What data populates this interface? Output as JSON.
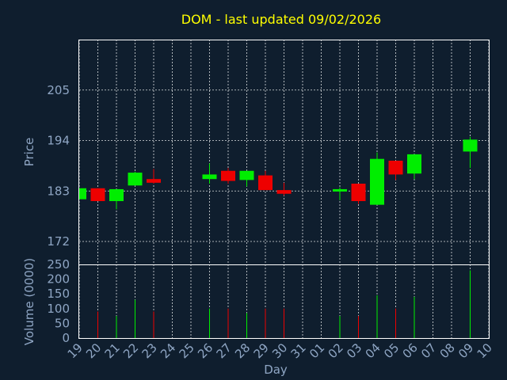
{
  "chart_data": {
    "type": "candlestick",
    "title": "DOM - last updated 09/02/2026",
    "price_panel": {
      "ylabel": "Price",
      "yticks": [
        172,
        183,
        194,
        205
      ],
      "ylim": [
        167,
        216
      ],
      "grid": true
    },
    "volume_panel": {
      "ylabel": "Volume (0000)",
      "yticks": [
        0,
        50,
        100,
        150,
        200,
        250
      ],
      "ylim": [
        0,
        250
      ],
      "grid": true
    },
    "xlabel": "Day",
    "xticks": [
      "19",
      "20",
      "21",
      "22",
      "23",
      "24",
      "25",
      "26",
      "27",
      "28",
      "29",
      "30",
      "31",
      "01",
      "02",
      "03",
      "04",
      "05",
      "06",
      "07",
      "08",
      "09",
      "10"
    ],
    "colors": {
      "up": "#00ee00",
      "down": "#ee0000",
      "background": "#0f1e2e",
      "frame": "#ffffff",
      "text": "#8fa6c4",
      "title": "#ffff00"
    },
    "candles": [
      {
        "day": "19",
        "open": 181.2,
        "high": 183.6,
        "low": 181.2,
        "close": 183.6,
        "volume": 0
      },
      {
        "day": "20",
        "open": 183.6,
        "high": 183.6,
        "low": 180.8,
        "close": 180.8,
        "volume": 90
      },
      {
        "day": "21",
        "open": 180.8,
        "high": 183.4,
        "low": 179.0,
        "close": 183.4,
        "volume": 75
      },
      {
        "day": "22",
        "open": 184.2,
        "high": 187.2,
        "low": 184.2,
        "close": 187.0,
        "volume": 130
      },
      {
        "day": "23",
        "open": 185.6,
        "high": 187.8,
        "low": 184.6,
        "close": 184.8,
        "volume": 90
      },
      {
        "day": "26",
        "open": 185.6,
        "high": 189.0,
        "low": 184.6,
        "close": 186.6,
        "volume": 100
      },
      {
        "day": "27",
        "open": 187.4,
        "high": 188.0,
        "low": 184.6,
        "close": 185.2,
        "volume": 100
      },
      {
        "day": "28",
        "open": 185.4,
        "high": 187.4,
        "low": 184.0,
        "close": 187.4,
        "volume": 85
      },
      {
        "day": "29",
        "open": 186.4,
        "high": 187.4,
        "low": 183.2,
        "close": 183.2,
        "volume": 100
      },
      {
        "day": "30",
        "open": 183.2,
        "high": 184.8,
        "low": 182.0,
        "close": 182.4,
        "volume": 100
      },
      {
        "day": "02",
        "open": 183.0,
        "high": 183.8,
        "low": 181.0,
        "close": 183.4,
        "volume": 75
      },
      {
        "day": "03",
        "open": 184.6,
        "high": 184.6,
        "low": 180.2,
        "close": 180.8,
        "volume": 75
      },
      {
        "day": "04",
        "open": 180.0,
        "high": 191.4,
        "low": 180.0,
        "close": 190.0,
        "volume": 145
      },
      {
        "day": "05",
        "open": 189.6,
        "high": 189.6,
        "low": 185.4,
        "close": 186.6,
        "volume": 100
      },
      {
        "day": "06",
        "open": 186.8,
        "high": 191.0,
        "low": 185.6,
        "close": 191.0,
        "volume": 140
      },
      {
        "day": "09",
        "open": 191.6,
        "high": 194.8,
        "low": 188.0,
        "close": 194.2,
        "volume": 230
      }
    ]
  }
}
